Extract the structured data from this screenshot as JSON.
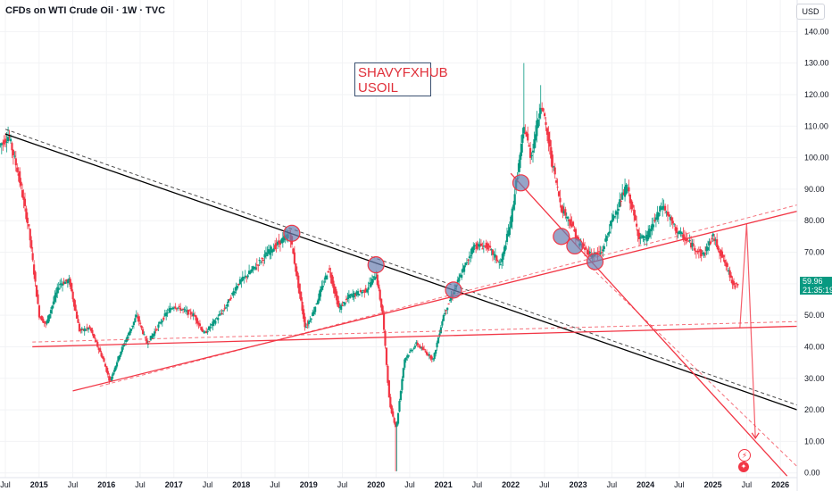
{
  "header": {
    "title": "CFDs on WTI Crude Oil · 1W · TVC"
  },
  "currency_button": "USD",
  "price_tag": {
    "price": "59.96",
    "countdown": "21:35:19"
  },
  "watermark": {
    "line1": "SHAVYFXHUB",
    "line2": "USOIL"
  },
  "indicator_icons": [
    "lightning-icon",
    "us-flag-icon"
  ],
  "colors": {
    "up": "#089981",
    "down": "#f23645",
    "trendline_black": "#000000",
    "trendline_red": "#f23645",
    "marker_fill": "#6a7fb0"
  },
  "chart_data": {
    "type": "candlestick",
    "symbol": "CFDs on WTI Crude Oil",
    "interval": "1W",
    "source": "TVC",
    "y_axis": {
      "ticks": [
        0,
        10,
        20,
        30,
        40,
        50,
        60,
        70,
        80,
        90,
        100,
        110,
        120,
        130,
        140
      ],
      "tick_labels": [
        "0.00",
        "10.00",
        "20.00",
        "30.00",
        "40.00",
        "50.00",
        "60.00",
        "70.00",
        "80.00",
        "90.00",
        "100.00",
        "110.00",
        "120.00",
        "130.00",
        "140.00"
      ],
      "range": [
        -1.5,
        150
      ],
      "unit": "USD"
    },
    "x_axis": {
      "range": [
        2014.42,
        2026.25
      ],
      "ticks": [
        {
          "t": 2014.5,
          "label": "Jul",
          "bold": false
        },
        {
          "t": 2015.0,
          "label": "2015",
          "bold": true
        },
        {
          "t": 2015.5,
          "label": "Jul",
          "bold": false
        },
        {
          "t": 2016.0,
          "label": "2016",
          "bold": true
        },
        {
          "t": 2016.5,
          "label": "Jul",
          "bold": false
        },
        {
          "t": 2017.0,
          "label": "2017",
          "bold": true
        },
        {
          "t": 2017.5,
          "label": "Jul",
          "bold": false
        },
        {
          "t": 2018.0,
          "label": "2018",
          "bold": true
        },
        {
          "t": 2018.5,
          "label": "Jul",
          "bold": false
        },
        {
          "t": 2019.0,
          "label": "2019",
          "bold": true
        },
        {
          "t": 2019.5,
          "label": "Jul",
          "bold": false
        },
        {
          "t": 2020.0,
          "label": "2020",
          "bold": true
        },
        {
          "t": 2020.5,
          "label": "Jul",
          "bold": false
        },
        {
          "t": 2021.0,
          "label": "2021",
          "bold": true
        },
        {
          "t": 2021.5,
          "label": "Jul",
          "bold": false
        },
        {
          "t": 2022.0,
          "label": "2022",
          "bold": true
        },
        {
          "t": 2022.5,
          "label": "Jul",
          "bold": false
        },
        {
          "t": 2023.0,
          "label": "2023",
          "bold": true
        },
        {
          "t": 2023.5,
          "label": "Jul",
          "bold": false
        },
        {
          "t": 2024.0,
          "label": "2024",
          "bold": true
        },
        {
          "t": 2024.5,
          "label": "Jul",
          "bold": false
        },
        {
          "t": 2025.0,
          "label": "2025",
          "bold": true
        },
        {
          "t": 2025.5,
          "label": "Jul",
          "bold": false
        },
        {
          "t": 2026.0,
          "label": "2026",
          "bold": true
        }
      ]
    },
    "price_path": [
      [
        2014.42,
        104
      ],
      [
        2014.55,
        107
      ],
      [
        2014.7,
        94
      ],
      [
        2014.85,
        77
      ],
      [
        2015.0,
        50
      ],
      [
        2015.1,
        47
      ],
      [
        2015.3,
        60
      ],
      [
        2015.45,
        61
      ],
      [
        2015.6,
        45
      ],
      [
        2015.75,
        46
      ],
      [
        2015.95,
        36
      ],
      [
        2016.05,
        29
      ],
      [
        2016.2,
        38
      ],
      [
        2016.45,
        50
      ],
      [
        2016.6,
        41
      ],
      [
        2016.9,
        51
      ],
      [
        2017.0,
        53
      ],
      [
        2017.3,
        50
      ],
      [
        2017.45,
        44
      ],
      [
        2017.75,
        52
      ],
      [
        2017.95,
        60
      ],
      [
        2018.1,
        63
      ],
      [
        2018.4,
        70
      ],
      [
        2018.72,
        76
      ],
      [
        2018.95,
        46
      ],
      [
        2019.05,
        50
      ],
      [
        2019.3,
        65
      ],
      [
        2019.45,
        52
      ],
      [
        2019.6,
        56
      ],
      [
        2019.85,
        58
      ],
      [
        2020.0,
        63
      ],
      [
        2020.1,
        50
      ],
      [
        2020.2,
        22
      ],
      [
        2020.3,
        14
      ],
      [
        2020.42,
        36
      ],
      [
        2020.6,
        41
      ],
      [
        2020.85,
        36
      ],
      [
        2021.0,
        50
      ],
      [
        2021.2,
        60
      ],
      [
        2021.45,
        72
      ],
      [
        2021.65,
        72
      ],
      [
        2021.85,
        66
      ],
      [
        2022.0,
        80
      ],
      [
        2022.2,
        110
      ],
      [
        2022.3,
        100
      ],
      [
        2022.45,
        118
      ],
      [
        2022.6,
        100
      ],
      [
        2022.75,
        84
      ],
      [
        2022.9,
        79
      ],
      [
        2023.0,
        73
      ],
      [
        2023.2,
        69
      ],
      [
        2023.35,
        70
      ],
      [
        2023.5,
        80
      ],
      [
        2023.72,
        91
      ],
      [
        2023.9,
        75
      ],
      [
        2024.0,
        74
      ],
      [
        2024.25,
        85
      ],
      [
        2024.45,
        77
      ],
      [
        2024.7,
        72
      ],
      [
        2024.85,
        69
      ],
      [
        2025.0,
        75
      ],
      [
        2025.15,
        68
      ],
      [
        2025.3,
        60
      ],
      [
        2025.38,
        59.96
      ]
    ],
    "notable_extremes": [
      {
        "t": 2020.3,
        "low": 0.5
      },
      {
        "t": 2022.2,
        "high": 130
      },
      {
        "t": 2022.45,
        "high": 123
      }
    ],
    "trendlines": [
      {
        "name": "black-downtrend",
        "color": "black",
        "from": [
          2014.5,
          107.5
        ],
        "to": [
          2026.25,
          20
        ]
      },
      {
        "name": "black-downtrend-dashed-parallel",
        "color": "black",
        "dashed": true,
        "from": [
          2014.5,
          109
        ],
        "to": [
          2026.25,
          21.5
        ]
      },
      {
        "name": "red-rising-trend",
        "color": "red",
        "from": [
          2015.5,
          26
        ],
        "to": [
          2026.25,
          83
        ]
      },
      {
        "name": "red-rising-trend-dashed-parallel",
        "color": "red",
        "dashed": true,
        "from": [
          2015.9,
          27.5
        ],
        "to": [
          2026.25,
          85
        ]
      },
      {
        "name": "red-horizontal-support",
        "color": "red",
        "from": [
          2014.9,
          40
        ],
        "to": [
          2026.25,
          46.5
        ]
      },
      {
        "name": "red-horizontal-support-dashed",
        "color": "red",
        "dashed": true,
        "from": [
          2014.9,
          41.5
        ],
        "to": [
          2026.25,
          48
        ]
      },
      {
        "name": "red-steep-downtrend",
        "color": "red",
        "from": [
          2022.0,
          95
        ],
        "to": [
          2026.1,
          -1
        ]
      },
      {
        "name": "red-steep-downtrend-dashed",
        "color": "red",
        "dashed": true,
        "from": [
          2023.2,
          65
        ],
        "to": [
          2026.25,
          2
        ]
      }
    ],
    "projection": [
      [
        2025.4,
        46
      ],
      [
        2025.5,
        79
      ],
      [
        2025.63,
        11
      ]
    ],
    "circle_markers": [
      {
        "t": 2018.75,
        "price": 76
      },
      {
        "t": 2020.0,
        "price": 66
      },
      {
        "t": 2021.15,
        "price": 58
      },
      {
        "t": 2022.15,
        "price": 92
      },
      {
        "t": 2022.75,
        "price": 75
      },
      {
        "t": 2022.95,
        "price": 72
      },
      {
        "t": 2023.25,
        "price": 67
      }
    ]
  }
}
